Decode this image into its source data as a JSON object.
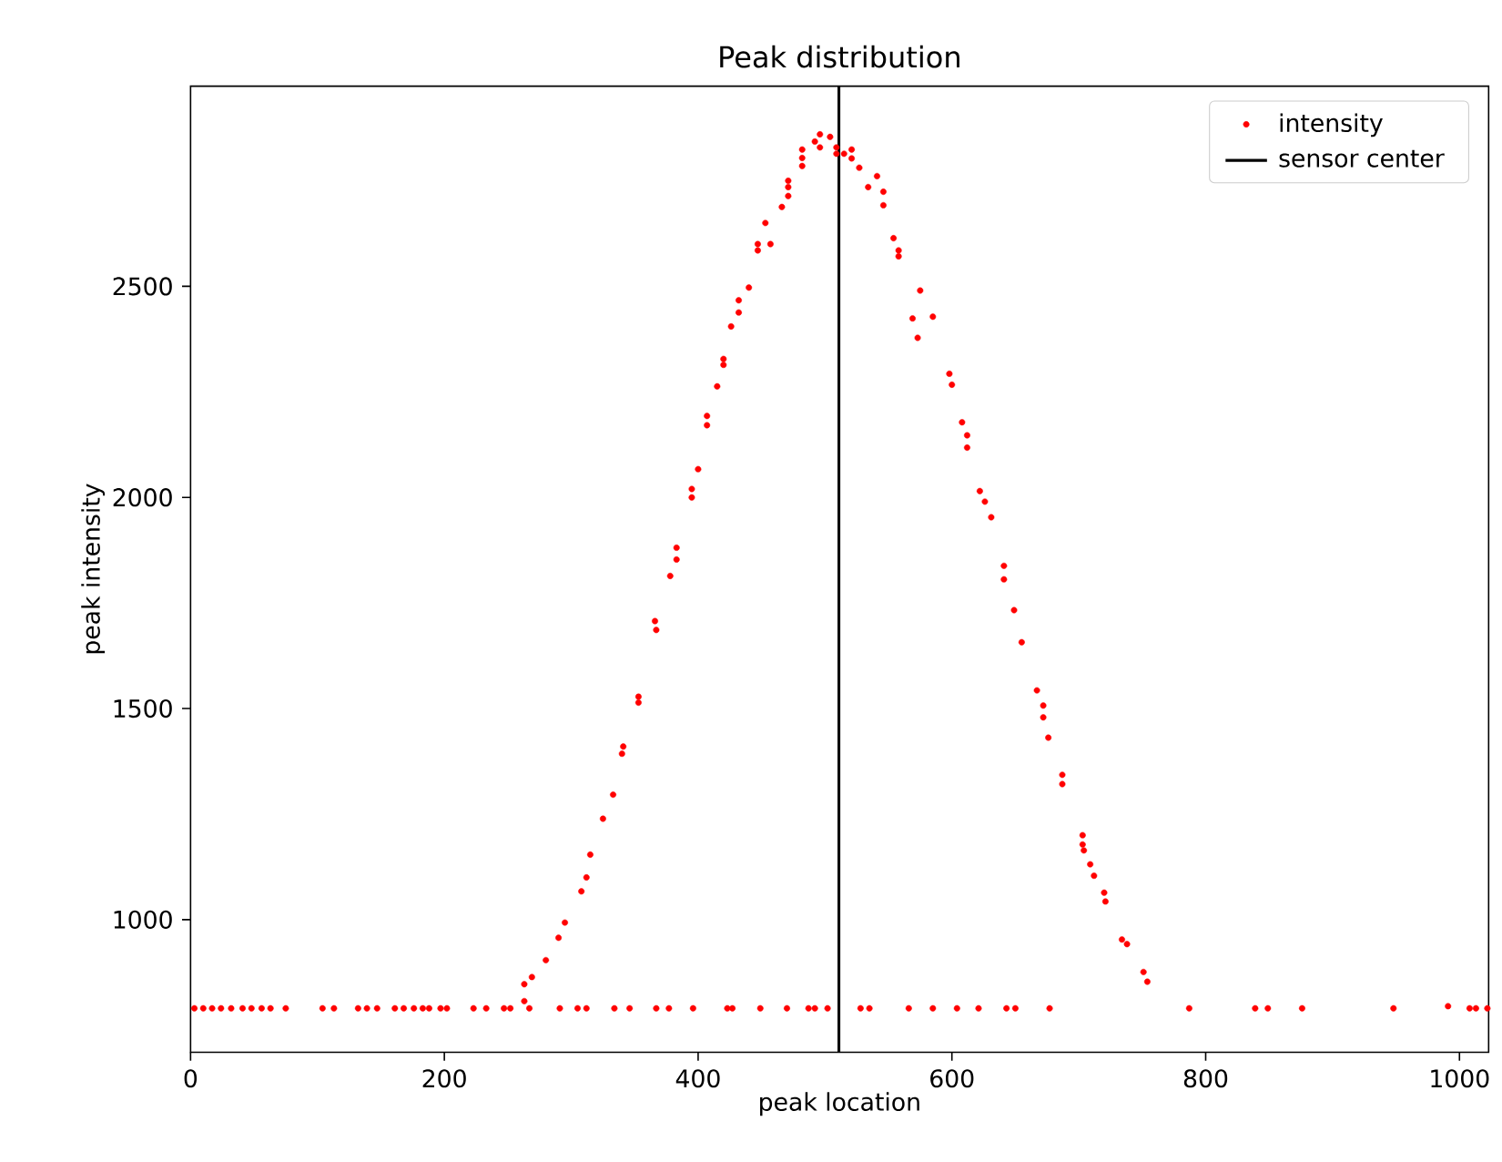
{
  "chart_data": {
    "type": "scatter",
    "title": "Peak distribution",
    "xlabel": "peak location",
    "ylabel": "peak intensity",
    "xlim": [
      0,
      1023
    ],
    "ylim": [
      686,
      2974
    ],
    "xticks": [
      0,
      200,
      400,
      600,
      800,
      1000
    ],
    "yticks": [
      1000,
      1500,
      2000,
      2500
    ],
    "legend": "top right",
    "ref_lines": [
      {
        "axis": "x",
        "value": 511,
        "label": "sensor center",
        "color": "#000000"
      }
    ],
    "series": [
      {
        "name": "intensity",
        "color": "#ff0000",
        "x": [
          3,
          10,
          17,
          24,
          32,
          41,
          48,
          56,
          63,
          75,
          104,
          113,
          132,
          139,
          147,
          161,
          168,
          176,
          183,
          188,
          197,
          202,
          223,
          233,
          247,
          252,
          267,
          291,
          305,
          312,
          334,
          346,
          367,
          377,
          396,
          423,
          427,
          449,
          470,
          487,
          492,
          502,
          528,
          535,
          566,
          585,
          604,
          621,
          643,
          650,
          677,
          787,
          839,
          849,
          876,
          948,
          991,
          1008,
          1013,
          1022,
          263,
          263,
          269,
          280,
          290,
          295,
          308,
          312,
          315,
          325,
          333,
          340,
          341,
          353,
          353,
          366,
          367,
          378,
          383,
          383,
          395,
          395,
          400,
          407,
          407,
          415,
          420,
          420,
          426,
          432,
          432,
          440,
          447,
          447,
          453,
          457,
          466,
          471,
          471,
          471,
          482,
          482,
          482,
          492,
          496,
          496,
          504,
          509,
          509,
          515,
          521,
          521,
          527,
          534,
          541,
          546,
          546,
          554,
          558,
          558,
          569,
          573,
          575,
          585,
          598,
          600,
          608,
          612,
          612,
          622,
          626,
          631,
          641,
          641,
          649,
          655,
          667,
          672,
          672,
          676,
          687,
          687,
          703,
          703,
          704,
          709,
          712,
          720,
          721,
          734,
          738,
          751,
          754
        ],
        "values": [
          790,
          790,
          790,
          790,
          790,
          790,
          790,
          790,
          790,
          790,
          790,
          790,
          790,
          790,
          790,
          790,
          790,
          790,
          790,
          790,
          790,
          790,
          790,
          790,
          790,
          790,
          790,
          790,
          790,
          790,
          790,
          790,
          790,
          790,
          790,
          790,
          790,
          790,
          790,
          790,
          790,
          790,
          790,
          790,
          790,
          790,
          790,
          790,
          790,
          790,
          790,
          790,
          790,
          790,
          790,
          790,
          795,
          790,
          790,
          790,
          807,
          847,
          864,
          904,
          957,
          993,
          1067,
          1100,
          1154,
          1239,
          1296,
          1393,
          1410,
          1514,
          1528,
          1707,
          1686,
          1814,
          1853,
          1881,
          2000,
          2020,
          2067,
          2171,
          2193,
          2263,
          2314,
          2328,
          2405,
          2438,
          2467,
          2497,
          2585,
          2600,
          2650,
          2600,
          2688,
          2714,
          2735,
          2750,
          2785,
          2804,
          2824,
          2843,
          2829,
          2860,
          2854,
          2829,
          2814,
          2814,
          2824,
          2803,
          2781,
          2735,
          2761,
          2724,
          2692,
          2614,
          2585,
          2571,
          2424,
          2378,
          2490,
          2428,
          2293,
          2267,
          2178,
          2147,
          2118,
          2015,
          1990,
          1953,
          1838,
          1806,
          1733,
          1657,
          1543,
          1507,
          1479,
          1431,
          1343,
          1321,
          1200,
          1178,
          1164,
          1131,
          1104,
          1064,
          1043,
          953,
          942,
          876,
          853
        ]
      }
    ]
  }
}
